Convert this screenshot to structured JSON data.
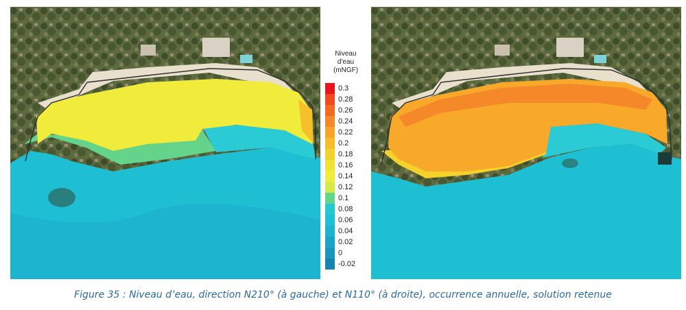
{
  "figure": {
    "caption": "Figure 35 : Niveau d’eau, direction N210° (à gauche) et N110° (à droite), occurrence annuelle, solution retenue"
  },
  "legend": {
    "title": [
      "Niveau",
      "d'eau",
      "(mNGF)"
    ],
    "colors": [
      "#e8151b",
      "#ee4a1e",
      "#f26a22",
      "#f5892a",
      "#f8a52a",
      "#f8bb29",
      "#f4d22b",
      "#f2e136",
      "#f1ed3a",
      "#d4ea4a",
      "#62d58a",
      "#22c9d1",
      "#1fc0d3",
      "#1cb3cf",
      "#1aa5c8",
      "#1896bd",
      "#1584b0"
    ],
    "labels": [
      "0.3",
      "0.28",
      "0.26",
      "0.24",
      "0.22",
      "0.2",
      "0.18",
      "0.16",
      "0.14",
      "0.12",
      "0.1",
      "0.08",
      "0.06",
      "0.04",
      "0.02",
      "0",
      "-0.02"
    ]
  },
  "maps": [
    {
      "direction": "N210°",
      "side": "à gauche"
    },
    {
      "direction": "N110°",
      "side": "à droite"
    }
  ]
}
